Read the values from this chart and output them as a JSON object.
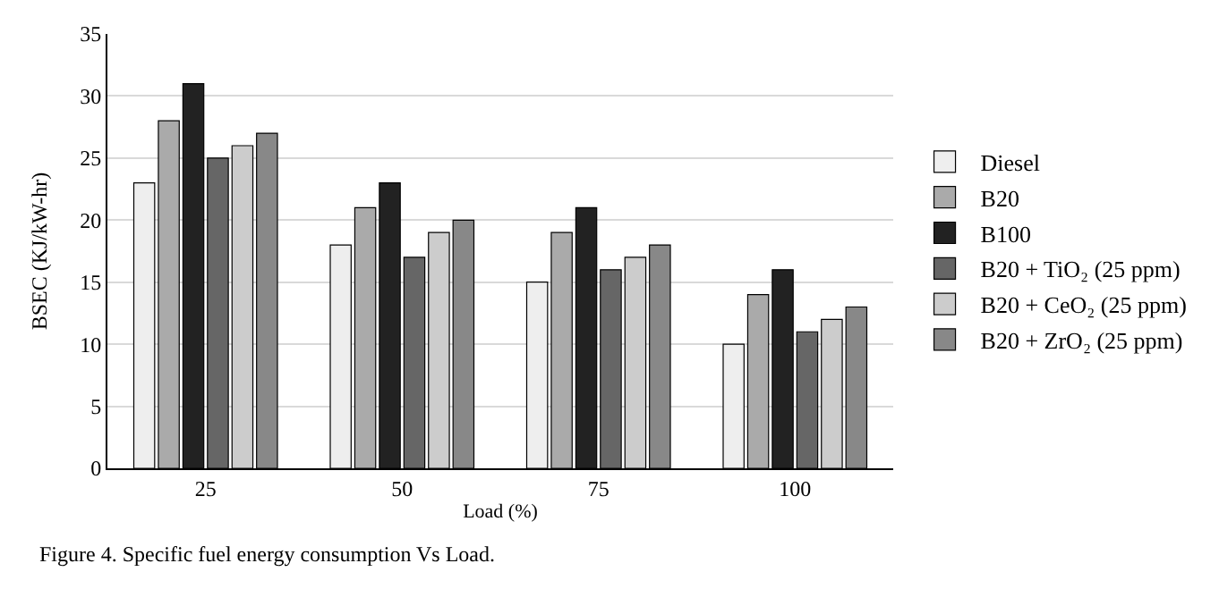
{
  "chart_data": {
    "type": "bar",
    "xlabel": "Load (%)",
    "ylabel": "BSEC (KJ/kW-hr)",
    "categories": [
      "25",
      "50",
      "75",
      "100"
    ],
    "series": [
      {
        "name": "Diesel",
        "color": "#eeeeee",
        "values": [
          23,
          18,
          15,
          10
        ]
      },
      {
        "name": "B20",
        "color": "#aaaaaa",
        "values": [
          28,
          21,
          19,
          14
        ]
      },
      {
        "name": "B100",
        "color": "#222222",
        "values": [
          31,
          23,
          21,
          16
        ]
      },
      {
        "name": "B20 + TiO₂ (25 ppm)",
        "color": "#666666",
        "values": [
          25,
          17,
          16,
          11
        ]
      },
      {
        "name": "B20 + CeO₂ (25 ppm)",
        "color": "#cccccc",
        "values": [
          26,
          19,
          17,
          12
        ]
      },
      {
        "name": "B20 + ZrO₂ (25 ppm)",
        "color": "#888888",
        "values": [
          27,
          20,
          18,
          13
        ]
      }
    ],
    "ylim": [
      0,
      35
    ],
    "yticks": [
      0,
      5,
      10,
      15,
      20,
      25,
      30,
      35
    ],
    "grid": "y",
    "legend": "right",
    "annotations": [
      "Figure 4. Specific fuel energy consumption Vs Load."
    ]
  }
}
